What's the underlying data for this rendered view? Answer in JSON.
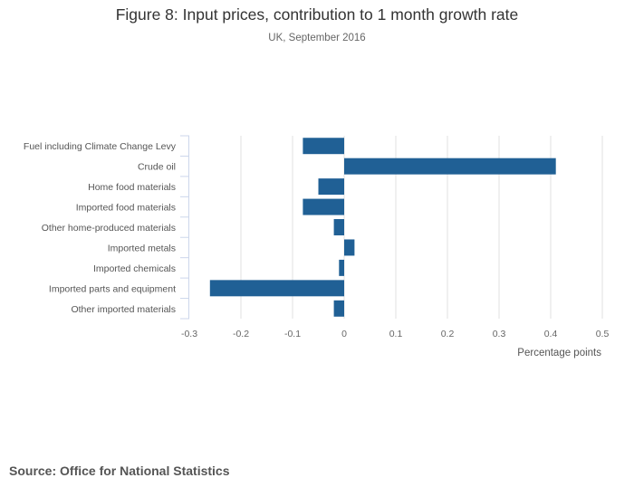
{
  "chart_data": {
    "type": "bar",
    "orientation": "horizontal",
    "title": "Figure 8: Input prices, contribution to 1 month growth rate",
    "subtitle": "UK, September 2016",
    "categories": [
      "Fuel including Climate Change Levy",
      "Crude oil",
      "Home food materials",
      "Imported food materials",
      "Other home-produced materials",
      "Imported metals",
      "Imported chemicals",
      "Imported parts and equipment",
      "Other imported materials"
    ],
    "values": [
      -0.08,
      0.41,
      -0.05,
      -0.08,
      -0.02,
      0.02,
      -0.01,
      -0.26,
      -0.02
    ],
    "xlabel": "Percentage points",
    "ylabel": "",
    "xlim": [
      -0.3,
      0.5
    ],
    "xticks": [
      -0.3,
      -0.2,
      -0.1,
      0,
      0.1,
      0.2,
      0.3,
      0.4,
      0.5
    ],
    "xtick_labels": [
      "-0.3",
      "-0.2",
      "-0.1",
      "0",
      "0.1",
      "0.2",
      "0.3",
      "0.4",
      "0.5"
    ],
    "grid": true,
    "legend": "none",
    "bar_color": "#206095",
    "source": "Source: Office for National Statistics"
  }
}
